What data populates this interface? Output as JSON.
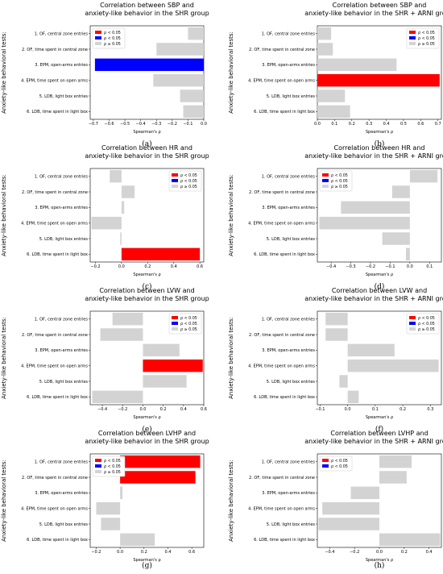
{
  "categories": [
    "1. OF, central zone entries",
    "2. OF, time spent in central zone",
    "3. EPM, open-arms entries",
    "4. EPM, time spent on open arms",
    "5. LDB, light box entries",
    "6. LDB, time spent in light box"
  ],
  "colors": {
    "sig_pos": "#ff0000",
    "sig_neg": "#0000ff",
    "ns": "#d3d3d3"
  },
  "chart_data": [
    {
      "type": "bar",
      "panel": "(a)",
      "title": [
        "Correlation between SBP and",
        "anxiety-like behavior in the SHR group"
      ],
      "xlabel": "Spearman's ρ",
      "ylabel": "Anxiety-like behavioral tests:",
      "xlim": [
        -0.72,
        0.0
      ],
      "xticks": [
        -0.7,
        -0.6,
        -0.5,
        -0.4,
        -0.3,
        -0.2,
        -0.1,
        0.0
      ],
      "xtick_labels": [
        "−0.7",
        "−0.6",
        "−0.5",
        "−0.4",
        "−0.3",
        "−0.2",
        "−0.1",
        "0.0"
      ],
      "values": [
        -0.1,
        -0.3,
        -0.69,
        -0.32,
        -0.15,
        -0.13
      ],
      "status": [
        "ns",
        "ns",
        "neg",
        "ns",
        "ns",
        "ns"
      ],
      "legend": [
        {
          "label": "ρ < 0.05",
          "color": "sig_pos"
        },
        {
          "label": "ρ < 0.05",
          "color": "sig_neg"
        },
        {
          "label": "ρ ≥ 0.05",
          "color": "ns"
        }
      ],
      "legend_position": "top-left"
    },
    {
      "type": "bar",
      "panel": "(b)",
      "title": [
        "Correlation between SBP and",
        "anxiety-like behavior in the SHR + ARNI group"
      ],
      "xlabel": "Spearman's ρ",
      "ylabel": "Anxiety-like behavioral tests:",
      "xlim": [
        0.0,
        0.72
      ],
      "xticks": [
        0.0,
        0.1,
        0.2,
        0.3,
        0.4,
        0.5,
        0.6,
        0.7
      ],
      "xtick_labels": [
        "0.0",
        "0.1",
        "0.2",
        "0.3",
        "0.4",
        "0.5",
        "0.6",
        "0.7"
      ],
      "values": [
        0.08,
        0.09,
        0.46,
        0.71,
        0.16,
        0.19
      ],
      "status": [
        "ns",
        "ns",
        "ns",
        "pos",
        "ns",
        "ns"
      ],
      "legend": [
        {
          "label": "ρ < 0.05",
          "color": "sig_pos"
        },
        {
          "label": "ρ < 0.05",
          "color": "sig_neg"
        },
        {
          "label": "ρ ≥ 0.05",
          "color": "ns"
        }
      ],
      "legend_position": "top-right"
    },
    {
      "type": "bar",
      "panel": "(c)",
      "title": [
        "Correlation between HR and",
        "anxiety-like behavior in the SHR group"
      ],
      "xlabel": "Spearman's ρ",
      "ylabel": "Anxiety-like behavioral tests:",
      "xlim": [
        -0.24,
        0.63
      ],
      "xticks": [
        -0.2,
        0.0,
        0.2,
        0.4,
        0.6
      ],
      "xtick_labels": [
        "−0.2",
        "0.0",
        "0.2",
        "0.4",
        "0.6"
      ],
      "values": [
        -0.09,
        0.1,
        0.02,
        -0.23,
        -0.01,
        0.6
      ],
      "status": [
        "ns",
        "ns",
        "ns",
        "ns",
        "ns",
        "pos"
      ],
      "legend": [
        {
          "label": "ρ < 0.05",
          "color": "sig_pos"
        },
        {
          "label": "ρ < 0.05",
          "color": "sig_neg"
        },
        {
          "label": "ρ ≥ 0.05",
          "color": "ns"
        }
      ],
      "legend_position": "top-right"
    },
    {
      "type": "bar",
      "panel": "(d)",
      "title": [
        "Correlation between HR and",
        "anxiety-like behavior in the SHR + ARNI group"
      ],
      "xlabel": "Spearman's ρ",
      "ylabel": "Anxiety-like behavioral tests:",
      "xlim": [
        -0.47,
        0.16
      ],
      "xticks": [
        -0.4,
        -0.3,
        -0.2,
        -0.1,
        0.0,
        0.1
      ],
      "xtick_labels": [
        "−0.4",
        "−0.3",
        "−0.2",
        "−0.1",
        "0.0",
        "0.1"
      ],
      "values": [
        0.14,
        -0.09,
        -0.35,
        -0.46,
        -0.14,
        -0.02
      ],
      "status": [
        "ns",
        "ns",
        "ns",
        "ns",
        "ns",
        "ns"
      ],
      "legend": [
        {
          "label": "ρ < 0.05",
          "color": "sig_pos"
        },
        {
          "label": "ρ < 0.05",
          "color": "sig_neg"
        },
        {
          "label": "ρ ≥ 0.05",
          "color": "ns"
        }
      ],
      "legend_position": "top-left"
    },
    {
      "type": "bar",
      "panel": "(e)",
      "title": [
        "Correlation between LVW and",
        "anxiety-like behavior in the SHR group"
      ],
      "xlabel": "Spearman's ρ",
      "ylabel": "Anxiety-like behavioral tests:",
      "xlim": [
        -0.52,
        0.6
      ],
      "xticks": [
        -0.4,
        -0.2,
        0.0,
        0.2,
        0.4,
        0.6
      ],
      "xtick_labels": [
        "−0.4",
        "−0.2",
        "0.0",
        "0.2",
        "0.4",
        "0.6"
      ],
      "values": [
        -0.3,
        -0.42,
        0.36,
        0.59,
        0.43,
        -0.5
      ],
      "status": [
        "ns",
        "ns",
        "ns",
        "pos",
        "ns",
        "ns"
      ],
      "legend": [
        {
          "label": "ρ < 0.05",
          "color": "sig_pos"
        },
        {
          "label": "ρ < 0.05",
          "color": "sig_neg"
        },
        {
          "label": "ρ ≥ 0.05",
          "color": "ns"
        }
      ],
      "legend_position": "top-right"
    },
    {
      "type": "bar",
      "panel": "(f)",
      "title": [
        "Correlation between LVW and",
        "anxiety-like behavior in the SHR + ARNI group"
      ],
      "xlabel": "Spearman's ρ",
      "ylabel": "Anxiety-like behavioral tests:",
      "xlim": [
        -0.11,
        0.34
      ],
      "xticks": [
        -0.1,
        0.0,
        0.1,
        0.2,
        0.3
      ],
      "xtick_labels": [
        "−0.1",
        "0.0",
        "0.1",
        "0.2",
        "0.3"
      ],
      "values": [
        -0.08,
        -0.08,
        0.17,
        0.33,
        -0.03,
        0.04
      ],
      "status": [
        "ns",
        "ns",
        "ns",
        "ns",
        "ns",
        "ns"
      ],
      "legend": [
        {
          "label": "ρ < 0.05",
          "color": "sig_pos"
        },
        {
          "label": "ρ < 0.05",
          "color": "sig_neg"
        },
        {
          "label": "ρ ≥ 0.05",
          "color": "ns"
        }
      ],
      "legend_position": "top-right"
    },
    {
      "type": "bar",
      "panel": "(g)",
      "title": [
        "Correlation between LVHP and",
        "anxiety-like behavior in the SHR group"
      ],
      "xlabel": "Spearman's ρ",
      "ylabel": "Anxiety-like behavioral tests:",
      "xlim": [
        -0.25,
        0.7
      ],
      "xticks": [
        -0.2,
        0.0,
        0.2,
        0.4,
        0.6
      ],
      "xtick_labels": [
        "−0.2",
        "0.0",
        "0.2",
        "0.4",
        "0.6"
      ],
      "values": [
        0.67,
        0.63,
        0.02,
        -0.2,
        -0.16,
        0.29
      ],
      "status": [
        "pos",
        "pos",
        "ns",
        "ns",
        "ns",
        "ns"
      ],
      "legend": [
        {
          "label": "ρ < 0.05",
          "color": "sig_pos"
        },
        {
          "label": "ρ < 0.05",
          "color": "sig_neg"
        },
        {
          "label": "ρ ≥ 0.05",
          "color": "ns"
        }
      ],
      "legend_position": "top-left"
    },
    {
      "type": "bar",
      "panel": "(h)",
      "title": [
        "Correlation between LVHP and",
        "anxiety-like behavior in the SHR + ARNI group"
      ],
      "xlabel": "Spearman's ρ",
      "ylabel": "Anxiety-like behavioral tests:",
      "xlim": [
        -0.5,
        0.5
      ],
      "xticks": [
        -0.4,
        -0.2,
        0.0,
        0.2,
        0.4
      ],
      "xtick_labels": [
        "−0.4",
        "−0.2",
        "0.0",
        "0.2",
        "0.4"
      ],
      "values": [
        0.26,
        0.22,
        -0.23,
        -0.46,
        -0.49,
        0.49
      ],
      "status": [
        "ns",
        "ns",
        "ns",
        "ns",
        "ns",
        "ns"
      ],
      "legend": [
        {
          "label": "ρ < 0.05",
          "color": "sig_pos"
        },
        {
          "label": "ρ < 0.05",
          "color": "sig_neg"
        }
      ],
      "legend_position": "top-left"
    }
  ]
}
